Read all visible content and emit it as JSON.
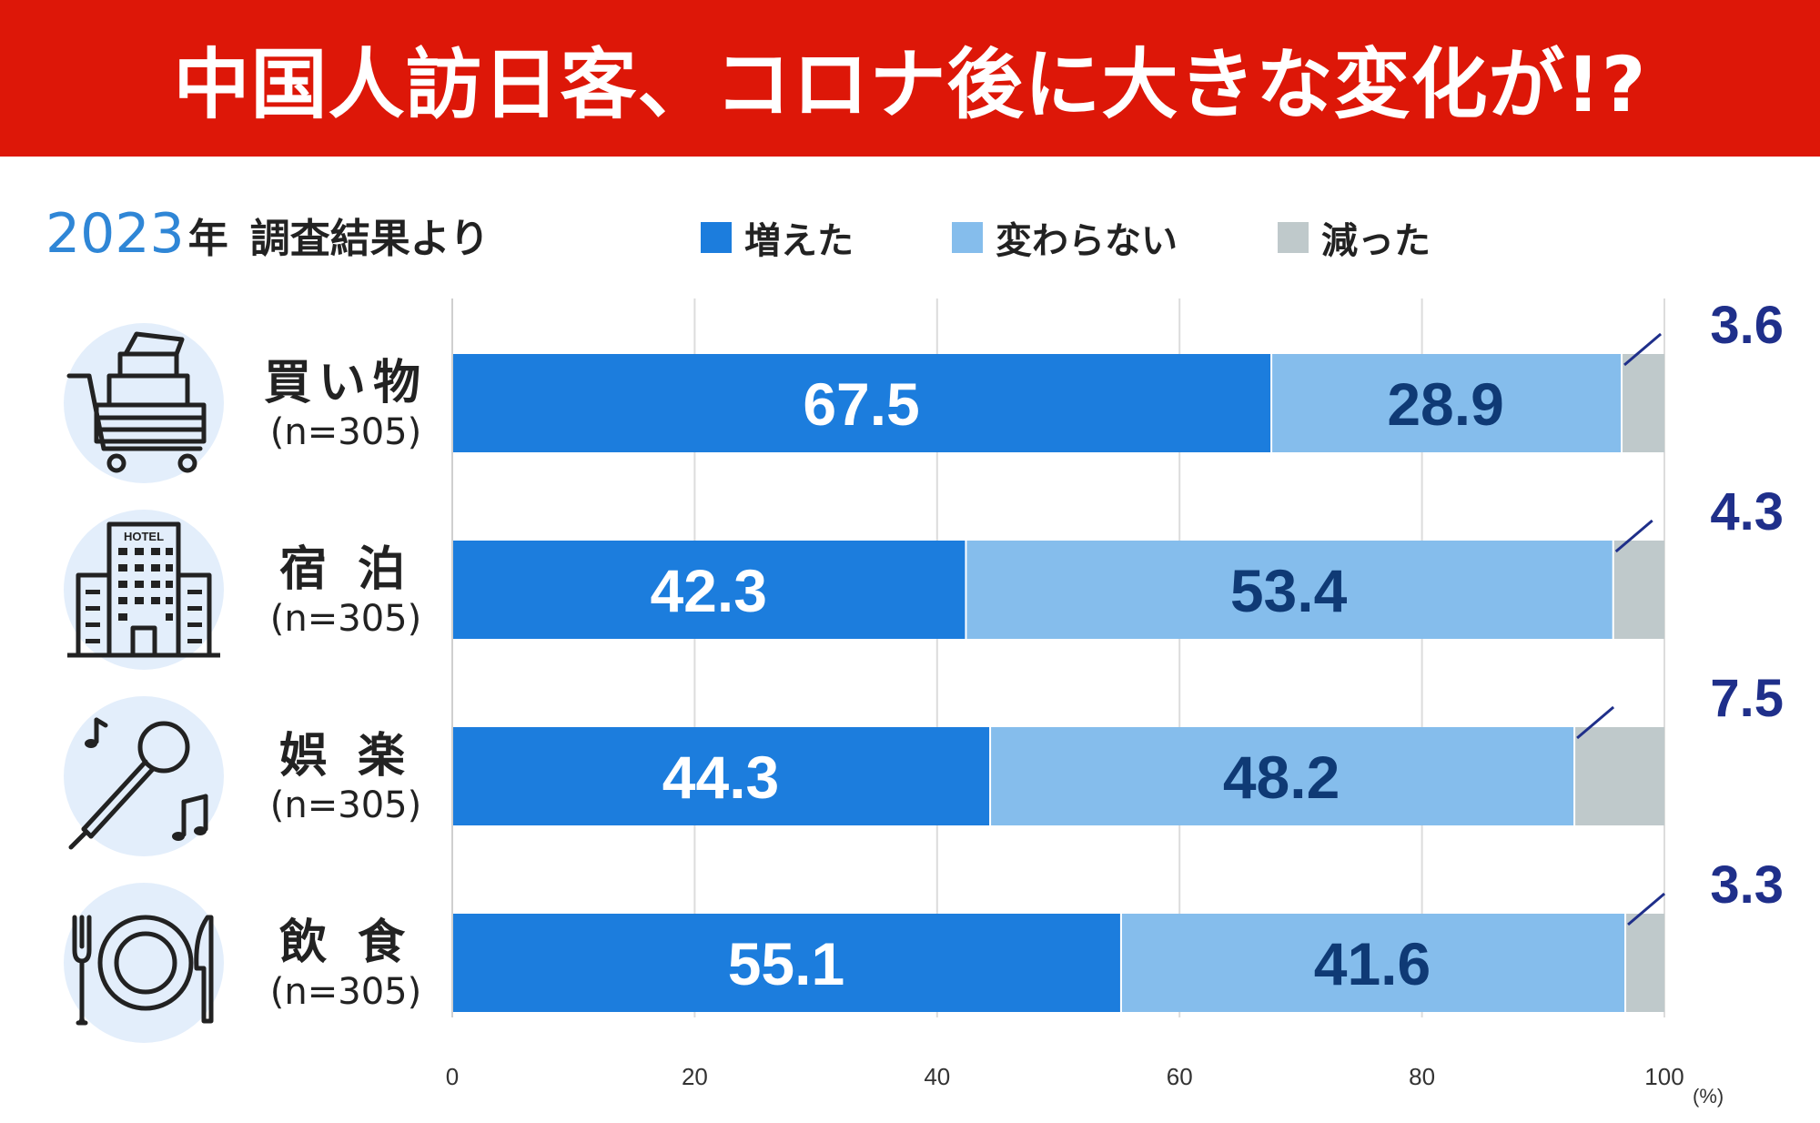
{
  "header": {
    "title": "中国人訪日客、コロナ後に大きな変化が!?",
    "year": "2023",
    "year_unit": "年",
    "survey_label": "調査結果より"
  },
  "colors": {
    "title_bg": "#dd1708",
    "increased": "#1c7ddd",
    "unchanged": "#85bdec",
    "decreased": "#bfc9cb",
    "decreased_label": "#1f2f8a",
    "unchanged_label": "#0f3a75",
    "icon_bg": "#e3eefb"
  },
  "rows": [
    {
      "category": "買い物",
      "n": "(n=305)",
      "icon": "shopping-cart-icon"
    },
    {
      "category": "宿 泊",
      "n": "(n=305)",
      "icon": "hotel-icon"
    },
    {
      "category": "娯 楽",
      "n": "(n=305)",
      "icon": "microphone-icon"
    },
    {
      "category": "飲 食",
      "n": "(n=305)",
      "icon": "plate-cutlery-icon"
    }
  ],
  "chart_data": {
    "type": "bar",
    "orientation": "horizontal",
    "stacked": true,
    "title": "中国人訪日客、コロナ後に大きな変化が!?",
    "subtitle": "2023年 調査結果より",
    "categories": [
      "買い物",
      "宿 泊",
      "娯 楽",
      "飲 食"
    ],
    "series": [
      {
        "name": "増えた",
        "values": [
          67.5,
          42.3,
          44.3,
          55.1
        ]
      },
      {
        "name": "変わらない",
        "values": [
          28.9,
          53.4,
          48.2,
          41.6
        ]
      },
      {
        "name": "減った",
        "values": [
          3.6,
          4.3,
          7.5,
          3.3
        ]
      }
    ],
    "xlim": [
      0,
      100
    ],
    "xticks": [
      "0",
      "20",
      "40",
      "60",
      "80",
      "100"
    ],
    "xunit": "(%)",
    "xlabel": "",
    "ylabel": "",
    "grid": true,
    "legend": "top"
  }
}
